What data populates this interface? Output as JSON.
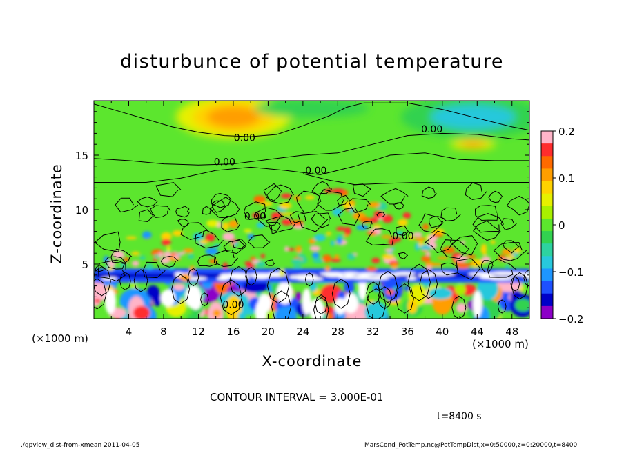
{
  "chart_data": {
    "type": "heatmap",
    "title": "disturbunce of potential temperature",
    "xlabel": "X-coordinate",
    "ylabel": "Z-coordinate",
    "x_unit_left": "(×1000 m)",
    "x_unit_right": "(×1000 m)",
    "xlim": [
      0,
      50
    ],
    "ylim": [
      0,
      20
    ],
    "x_ticks": [
      4,
      8,
      12,
      16,
      20,
      24,
      28,
      32,
      36,
      40,
      44,
      48
    ],
    "y_ticks": [
      5,
      10,
      15
    ],
    "colorbar": {
      "range": [
        -0.2,
        0.2
      ],
      "tick_values": [
        0.2,
        0.1,
        0,
        -0.1,
        -0.2
      ],
      "tick_labels": [
        "0.2",
        "0.1",
        "0",
        "−0.1",
        "−0.2"
      ],
      "colors": [
        "#ffb4c8",
        "#ff2d2d",
        "#ff6a00",
        "#ff9e00",
        "#ffd200",
        "#e6f000",
        "#a8f000",
        "#5ce62e",
        "#32d250",
        "#2ed2a0",
        "#28c8dc",
        "#1e96ff",
        "#1e50ff",
        "#0000c8",
        "#8c00c8"
      ]
    },
    "contour_labels": [
      {
        "x": 17.3,
        "z": 16.6,
        "text": "0.00"
      },
      {
        "x": 15.0,
        "z": 14.4,
        "text": "0.00"
      },
      {
        "x": 38.8,
        "z": 17.4,
        "text": "0.00"
      },
      {
        "x": 25.5,
        "z": 13.6,
        "text": "0.00"
      },
      {
        "x": 18.5,
        "z": 9.4,
        "text": "0.00"
      },
      {
        "x": 35.5,
        "z": 7.6,
        "text": "0.00"
      },
      {
        "x": 16.0,
        "z": 1.3,
        "text": "0.00"
      }
    ],
    "features": [
      {
        "x": 16.0,
        "z": 18.5,
        "value": 0.12,
        "rx": 5.5,
        "rz": 1.6
      },
      {
        "x": 43.5,
        "z": 16.0,
        "value": 0.12,
        "rx": 2.2,
        "rz": 0.4
      },
      {
        "x": 43.5,
        "z": 18.5,
        "value": -0.08,
        "rx": 7.5,
        "rz": 1.6
      },
      {
        "x": 25.0,
        "z": 19.3,
        "value": -0.03,
        "rx": 6.0,
        "rz": 0.7
      },
      {
        "x": 25.0,
        "z": 2.0,
        "value": 0.15,
        "rx": 25.0,
        "rz": 2.0
      },
      {
        "x": 25.0,
        "z": 2.0,
        "value": -0.15,
        "rx": 25.0,
        "rz": 2.0
      },
      {
        "x": 25.0,
        "z": 3.9,
        "value": -0.2,
        "rx": 25.0,
        "rz": 0.3
      }
    ]
  },
  "contour_interval_text": "CONTOUR INTERVAL = 3.000E-01",
  "time_text": "t=8400 s",
  "footer_left": "./gpview_dist-from-xmean   2011-04-05",
  "footer_right": "MarsCond_PotTemp.nc@PotTempDist,x=0:50000,z=0:20000,t=8400"
}
